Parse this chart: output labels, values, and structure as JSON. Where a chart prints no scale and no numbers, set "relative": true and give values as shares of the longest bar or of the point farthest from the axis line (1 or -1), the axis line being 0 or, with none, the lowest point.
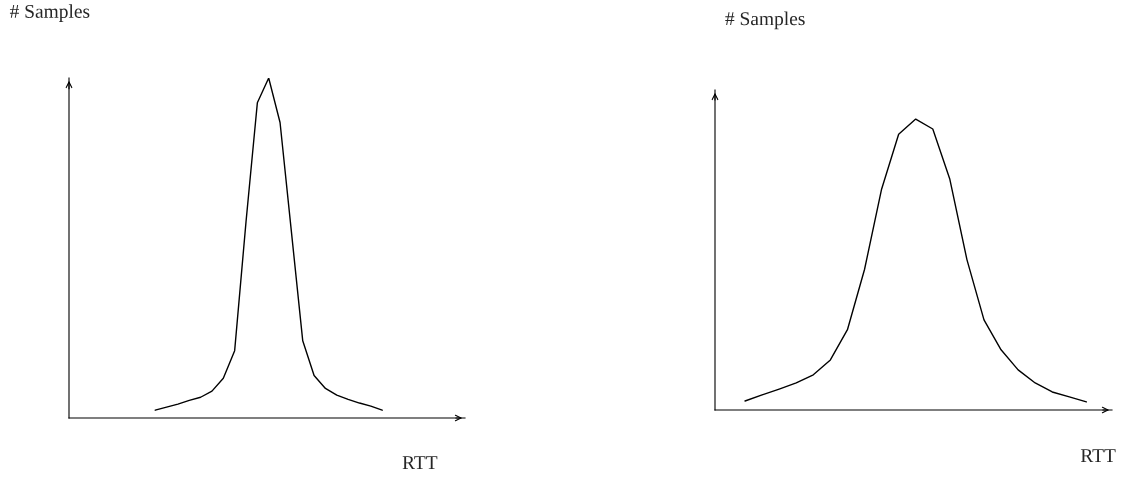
{
  "chart_data": [
    {
      "type": "line",
      "relative": true,
      "xlabel": "RTT",
      "ylabel": "# Samples",
      "categories": [
        null,
        null,
        null,
        null,
        null,
        null,
        null,
        null,
        null,
        null,
        null,
        null,
        null,
        null,
        null,
        null,
        null,
        null,
        null,
        null,
        null
      ],
      "series": [
        {
          "color": "#000000",
          "values": [
            0.023,
            0.032,
            0.041,
            0.052,
            0.061,
            0.079,
            0.117,
            0.198,
            0.577,
            0.927,
            1.0,
            0.869,
            0.548,
            0.227,
            0.125,
            0.087,
            0.067,
            0.055,
            0.044,
            0.035,
            0.023
          ]
        }
      ]
    },
    {
      "type": "line",
      "relative": true,
      "xlabel": "RTT",
      "ylabel": "# Samples",
      "categories": [
        null,
        null,
        null,
        null,
        null,
        null,
        null,
        null,
        null,
        null,
        null,
        null,
        null,
        null,
        null,
        null,
        null,
        null,
        null,
        null,
        null
      ],
      "series": [
        {
          "color": "#000000",
          "values": [
            0.031,
            0.052,
            0.072,
            0.093,
            0.121,
            0.172,
            0.276,
            0.483,
            0.759,
            0.948,
            1.0,
            0.966,
            0.793,
            0.517,
            0.31,
            0.207,
            0.138,
            0.093,
            0.062,
            0.045,
            0.028
          ]
        }
      ]
    }
  ]
}
